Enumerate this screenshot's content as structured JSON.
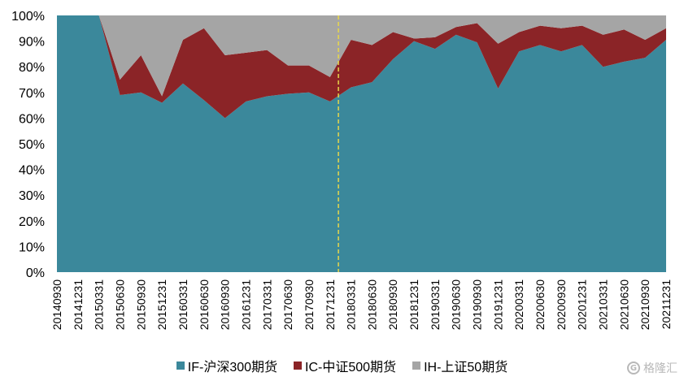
{
  "chart_data": {
    "type": "area",
    "stacked": true,
    "categories": [
      "20140930",
      "20141231",
      "20150331",
      "20150630",
      "20150930",
      "20151231",
      "20160331",
      "20160630",
      "20160930",
      "20161231",
      "20170331",
      "20170630",
      "20170930",
      "20171231",
      "20180331",
      "20180630",
      "20180930",
      "20181231",
      "20190331",
      "20190630",
      "20190930",
      "20191231",
      "20200331",
      "20200630",
      "20200930",
      "20201231",
      "20210331",
      "20210630",
      "20210930",
      "20211231"
    ],
    "series": [
      {
        "name": "IF-沪深300期货",
        "color": "#3b889b",
        "values": [
          100,
          100,
          100,
          69,
          70,
          66,
          73.5,
          67,
          60,
          66.5,
          68.5,
          69.5,
          70,
          66.5,
          72,
          74,
          83,
          90,
          87,
          92.5,
          89.5,
          71.5,
          86,
          88.5,
          86,
          88.5,
          80,
          82,
          83.5,
          90.5
        ]
      },
      {
        "name": "IC-中证500期货",
        "color": "#8b2427",
        "values": [
          0,
          0,
          0,
          6,
          14.5,
          2.5,
          17,
          28,
          24.5,
          19,
          18,
          11,
          10.5,
          9.5,
          18.5,
          14.5,
          10.5,
          1,
          4.5,
          3,
          7.5,
          17.5,
          7.5,
          7.5,
          9,
          7.5,
          12.5,
          12.5,
          7,
          4.5
        ]
      },
      {
        "name": "IH-上证50期货",
        "color": "#a5a5a5",
        "values": [
          0,
          0,
          0,
          25,
          15.5,
          31.5,
          9.5,
          5,
          15.5,
          14.5,
          13.5,
          19.5,
          19.5,
          24,
          9.5,
          11.5,
          6.5,
          9,
          8.5,
          4.5,
          3,
          11,
          6.5,
          4,
          5,
          4,
          7.5,
          5.5,
          9.5,
          5
        ]
      }
    ],
    "yticks": [
      "0%",
      "10%",
      "20%",
      "30%",
      "40%",
      "50%",
      "60%",
      "70%",
      "80%",
      "90%",
      "100%"
    ],
    "ylim": [
      0,
      100
    ],
    "divider_after": "20171231",
    "divider_color": "#e8d84a",
    "legend_position": "bottom"
  },
  "watermark": {
    "logo": "G",
    "text": "格隆汇"
  }
}
